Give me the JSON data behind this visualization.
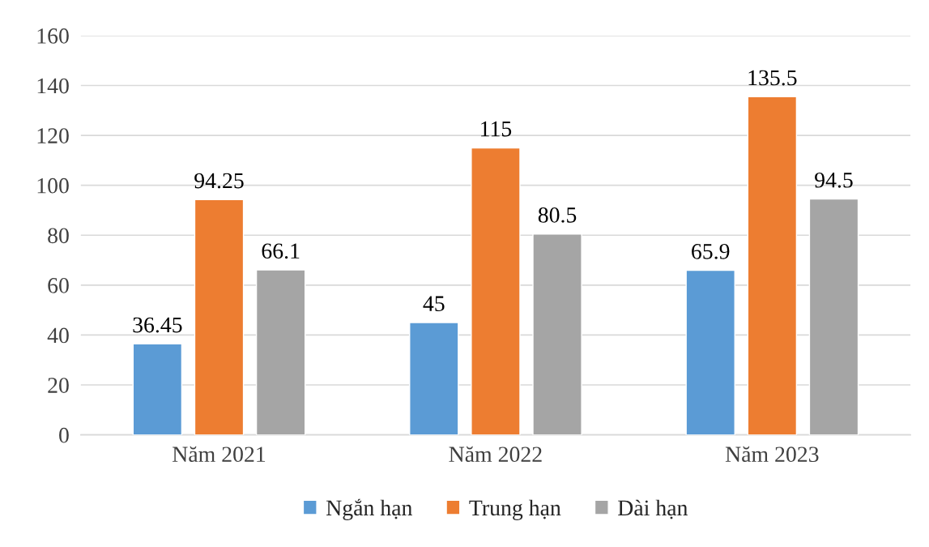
{
  "chart_data": {
    "type": "bar",
    "categories": [
      "Năm 2021",
      "Năm 2022",
      "Năm 2023"
    ],
    "series": [
      {
        "name": "Ngắn hạn",
        "color": "#5b9bd5",
        "values": [
          36.45,
          45,
          65.9
        ]
      },
      {
        "name": "Trung hạn",
        "color": "#ed7d31",
        "values": [
          94.25,
          115,
          135.5
        ]
      },
      {
        "name": "Dài hạn",
        "color": "#a5a5a5",
        "values": [
          66.1,
          80.5,
          94.5
        ]
      }
    ],
    "ylim": [
      0,
      160
    ],
    "yticks": [
      0,
      20,
      40,
      60,
      80,
      100,
      120,
      140,
      160
    ],
    "grid": "y",
    "legend": "bottom",
    "data_labels": true
  }
}
